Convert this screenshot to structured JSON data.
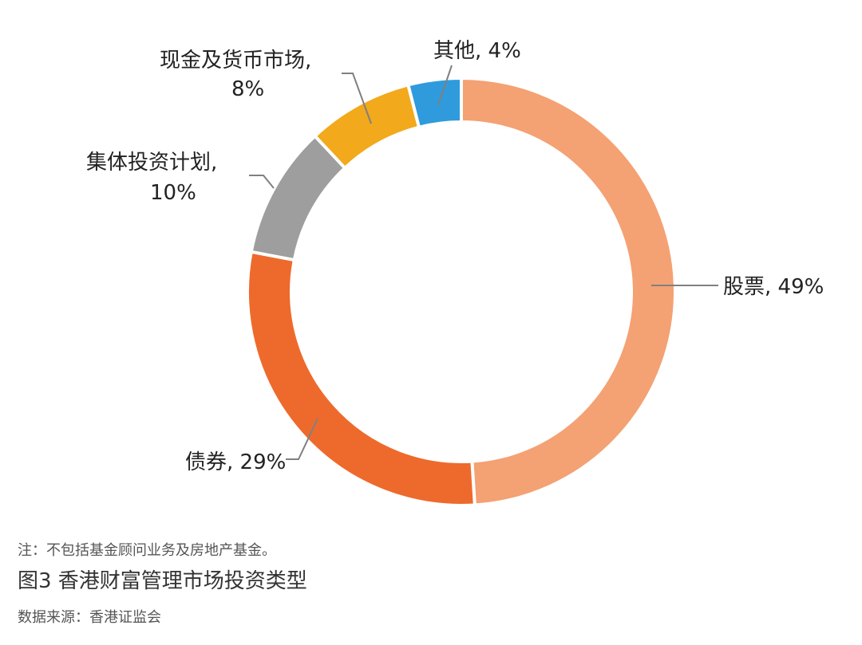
{
  "note": "注：不包括基金顾问业务及房地产基金。",
  "figure_title": "图3 香港财富管理市场投资类型",
  "source": "数据来源：香港证监会",
  "chart_data": {
    "type": "pie",
    "variant": "donut",
    "title": "",
    "slices": [
      {
        "name": "股票",
        "value": 49,
        "label_line1": "股票, 49%",
        "label_line2": "",
        "color": "#F4A173"
      },
      {
        "name": "债券",
        "value": 29,
        "label_line1": "债券, 29%",
        "label_line2": "",
        "color": "#EE6A2C"
      },
      {
        "name": "集体投资计划",
        "value": 10,
        "label_line1": "集体投资计划,",
        "label_line2": "10%",
        "color": "#9E9E9E"
      },
      {
        "name": "现金及货币市场",
        "value": 8,
        "label_line1": "现金及货币市场,",
        "label_line2": "8%",
        "color": "#F2A91B"
      },
      {
        "name": "其他",
        "value": 4,
        "label_line1": "其他, 4%",
        "label_line2": "",
        "color": "#2F9BDD"
      }
    ],
    "start_at": "top",
    "direction": "clockwise",
    "legend": "none"
  }
}
